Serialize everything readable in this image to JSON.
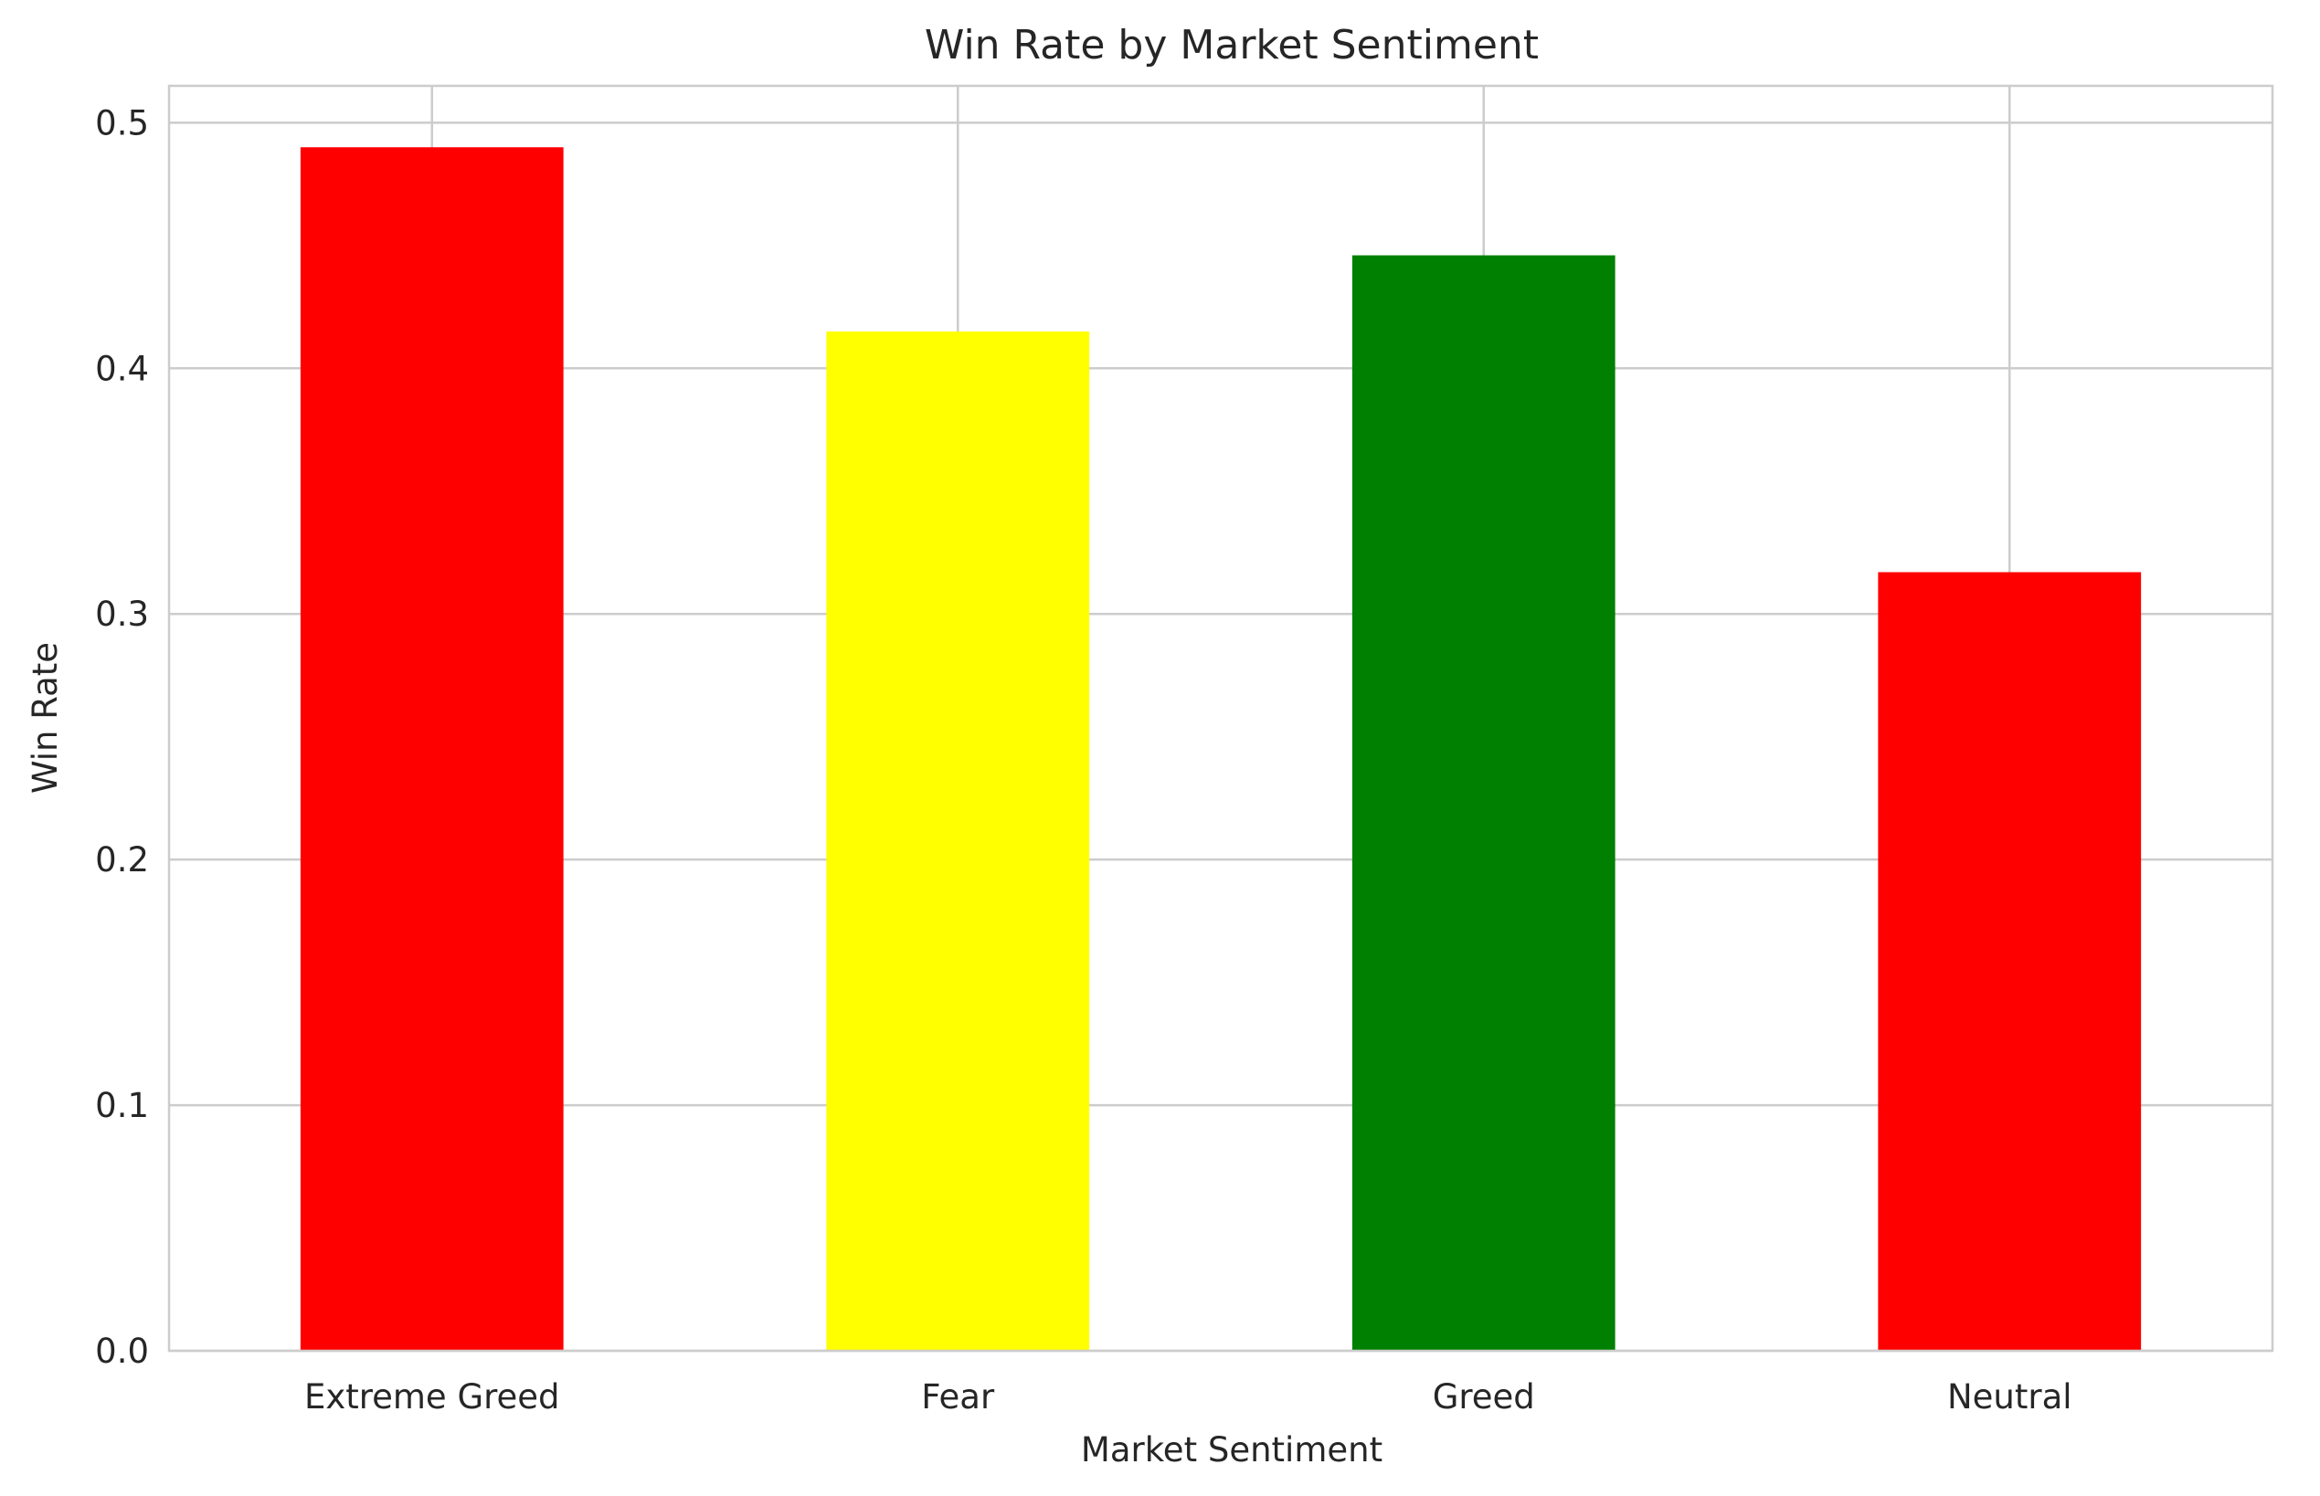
{
  "chart_data": {
    "type": "bar",
    "title": "Win Rate by Market Sentiment",
    "xlabel": "Market Sentiment",
    "ylabel": "Win Rate",
    "categories": [
      "Extreme Greed",
      "Fear",
      "Greed",
      "Neutral"
    ],
    "values": [
      0.49,
      0.415,
      0.446,
      0.317
    ],
    "colors": [
      "#ff0000",
      "#ffff00",
      "#008000",
      "#ff0000"
    ],
    "ylim": [
      0,
      0.515
    ],
    "yticks": [
      0.0,
      0.1,
      0.2,
      0.3,
      0.4,
      0.5
    ],
    "ytick_labels": [
      "0.0",
      "0.1",
      "0.2",
      "0.3",
      "0.4",
      "0.5"
    ],
    "grid": true,
    "background": "#ffffff"
  }
}
